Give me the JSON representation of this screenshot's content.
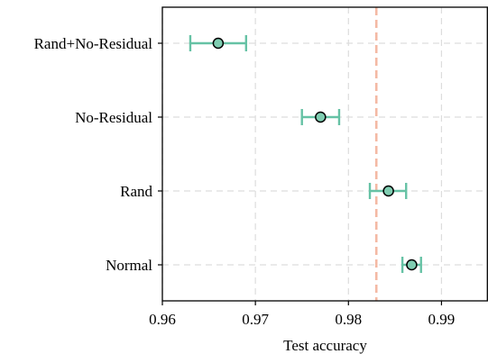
{
  "chart_data": {
    "type": "scatter",
    "orientation": "horizontal",
    "title": "",
    "xlabel": "Test accuracy",
    "ylabel": "",
    "xlim": [
      0.96,
      0.995
    ],
    "x_ticks": [
      "0.96",
      "0.97",
      "0.98",
      "0.99"
    ],
    "x_tick_values": [
      0.96,
      0.97,
      0.98,
      0.99
    ],
    "categories": [
      "Rand+No-Residual",
      "No-Residual",
      "Rand",
      "Normal"
    ],
    "values": [
      0.966,
      0.977,
      0.9843,
      0.9868
    ],
    "error_low": [
      0.963,
      0.975,
      0.9823,
      0.9858
    ],
    "error_high": [
      0.969,
      0.979,
      0.9862,
      0.9878
    ],
    "reference_line": 0.983,
    "grid": true,
    "colors": {
      "marker_fill": "#7fcdb1",
      "marker_edge": "#000000",
      "errorbar": "#66c2a5",
      "reference_line": "#f4b9a4",
      "grid": "#dddddd"
    }
  }
}
